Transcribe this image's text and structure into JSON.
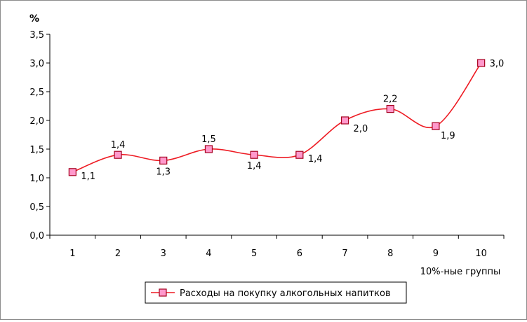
{
  "chart_data": {
    "type": "line",
    "ylabel": "%",
    "xlabel": "10%-ные группы",
    "categories": [
      "1",
      "2",
      "3",
      "4",
      "5",
      "6",
      "7",
      "8",
      "9",
      "10"
    ],
    "ylim": [
      0,
      3.5
    ],
    "yticks": [
      "0,0",
      "0,5",
      "1,0",
      "1,5",
      "2,0",
      "2,5",
      "3,0",
      "3,5"
    ],
    "grid": false,
    "legend_position": "bottom-center",
    "series": [
      {
        "name": "Расходы на покупку алкогольных напитков",
        "values": [
          1.1,
          1.4,
          1.3,
          1.5,
          1.4,
          1.4,
          2.0,
          2.2,
          1.9,
          3.0
        ],
        "labels": [
          "1,1",
          "1,4",
          "1,3",
          "1,5",
          "1,4",
          "1,4",
          "2,0",
          "2,2",
          "1,9",
          "3,0"
        ],
        "line_color": "#ee1c24",
        "marker_fill": "#ff99cc",
        "marker_edge": "#a5001e"
      }
    ]
  }
}
